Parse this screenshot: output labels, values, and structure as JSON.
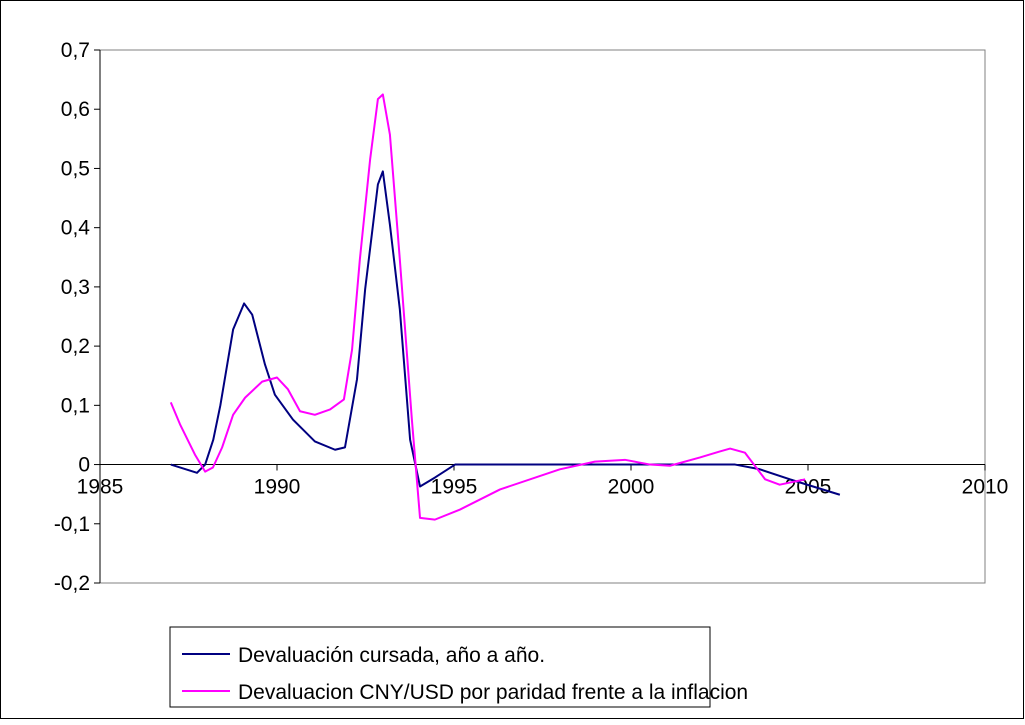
{
  "chart_data": {
    "type": "line",
    "xlim": [
      1985,
      2010
    ],
    "xticks": [
      1985,
      1990,
      1995,
      2000,
      2005,
      2010
    ],
    "ylim": [
      -0.2,
      0.7
    ],
    "yticks": [
      {
        "value": -0.2,
        "label": "-0,2"
      },
      {
        "value": -0.1,
        "label": "-0,1"
      },
      0,
      {
        "value": 0.1,
        "label": "0,1"
      },
      {
        "value": 0.2,
        "label": "0,2"
      },
      {
        "value": 0.3,
        "label": "0,3"
      },
      {
        "value": 0.4,
        "label": "0,4"
      },
      {
        "value": 0.5,
        "label": "0,5"
      },
      {
        "value": 0.6,
        "label": "0,6"
      },
      {
        "value": 0.7,
        "label": "0,7"
      }
    ],
    "legend": "bottom",
    "series": [
      {
        "name": "Devaluación cursada, año a año.",
        "color": "#000080",
        "x": [
          1987.0,
          1987.74,
          1987.97,
          1988.2,
          1988.4,
          1988.76,
          1989.07,
          1989.3,
          1989.66,
          1989.94,
          1990.45,
          1991.07,
          1991.64,
          1991.92,
          1992.26,
          1992.49,
          1992.68,
          1992.85,
          1992.99,
          1993.19,
          1993.47,
          1993.76,
          1994.04,
          1994.46,
          1995.03,
          2002.94,
          2003.64,
          2004.49,
          2005.9
        ],
        "values": [
          0,
          -0.014,
          0,
          0.042,
          0.1,
          0.228,
          0.272,
          0.253,
          0.169,
          0.118,
          0.076,
          0.039,
          0.025,
          0.029,
          0.144,
          0.296,
          0.389,
          0.473,
          0.495,
          0.405,
          0.262,
          0.042,
          -0.037,
          -0.022,
          0,
          0,
          -0.008,
          -0.025,
          -0.051
        ]
      },
      {
        "name": "Devaluacion CNY/USD por paridad frente a la inflacion",
        "color": "#ff00ff",
        "x": [
          1987.0,
          1987.26,
          1987.68,
          1987.97,
          1988.19,
          1988.45,
          1988.76,
          1989.1,
          1989.58,
          1990.0,
          1990.31,
          1990.65,
          1991.07,
          1991.5,
          1991.89,
          1992.12,
          1992.34,
          1992.63,
          1992.85,
          1992.99,
          1993.19,
          1993.47,
          1993.81,
          1994.04,
          1994.46,
          1995.17,
          1996.3,
          1997.99,
          1998.98,
          1999.83,
          2000.54,
          2001.1,
          2001.95,
          2002.5,
          2002.8,
          2003.22,
          2003.79,
          2004.2,
          2004.92
        ],
        "values": [
          0.105,
          0.068,
          0.017,
          -0.012,
          -0.005,
          0.029,
          0.084,
          0.113,
          0.14,
          0.147,
          0.127,
          0.09,
          0.084,
          0.093,
          0.11,
          0.194,
          0.346,
          0.515,
          0.617,
          0.625,
          0.557,
          0.346,
          0.076,
          -0.09,
          -0.093,
          -0.076,
          -0.042,
          -0.008,
          0.005,
          0.008,
          0,
          -0.002,
          0.012,
          0.022,
          0.027,
          0.02,
          -0.025,
          -0.034,
          -0.025
        ]
      }
    ]
  }
}
